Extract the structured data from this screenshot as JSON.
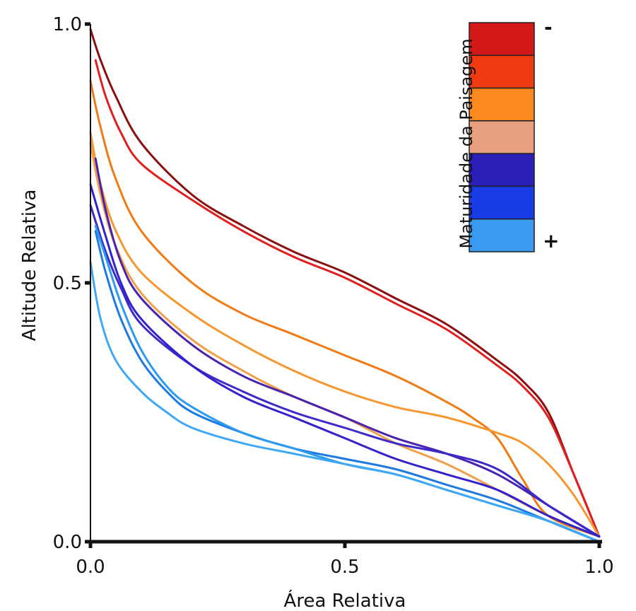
{
  "chart_data": {
    "type": "line",
    "title": "",
    "xlabel": "Área Relativa",
    "ylabel": "Altitude Relativa",
    "xlim": [
      0,
      1
    ],
    "ylim": [
      0,
      1
    ],
    "x_ticks": [
      "0.0",
      "0.5",
      "1.0"
    ],
    "y_ticks": [
      "0.0",
      "0.5",
      "1.0"
    ],
    "grid": false,
    "legend": {
      "type": "colorbar",
      "title": "Maturidade da Paisagem",
      "placement": "top-right",
      "top_label": "-",
      "bottom_label": "+",
      "colors": [
        "#d41818",
        "#ef3a12",
        "#fb8a1e",
        "#e8a080",
        "#2a1fb8",
        "#1a3ce8",
        "#3a9af0"
      ]
    },
    "series": [
      {
        "color": "#8b1010",
        "x": [
          0,
          0.02,
          0.05,
          0.1,
          0.2,
          0.3,
          0.4,
          0.5,
          0.6,
          0.7,
          0.8,
          0.85,
          0.9,
          0.95,
          1.0
        ],
        "y": [
          0.99,
          0.93,
          0.86,
          0.77,
          0.67,
          0.61,
          0.56,
          0.52,
          0.47,
          0.42,
          0.35,
          0.31,
          0.25,
          0.13,
          0.01
        ]
      },
      {
        "color": "#e01f1f",
        "x": [
          0.01,
          0.03,
          0.06,
          0.1,
          0.2,
          0.3,
          0.4,
          0.5,
          0.6,
          0.7,
          0.8,
          0.85,
          0.9,
          0.95,
          1.0
        ],
        "y": [
          0.93,
          0.86,
          0.79,
          0.73,
          0.66,
          0.6,
          0.55,
          0.51,
          0.46,
          0.41,
          0.34,
          0.3,
          0.24,
          0.13,
          0.01
        ]
      },
      {
        "color": "#f07a14",
        "x": [
          0,
          0.02,
          0.05,
          0.1,
          0.2,
          0.3,
          0.4,
          0.5,
          0.6,
          0.7,
          0.75,
          0.8,
          0.85,
          0.9,
          1.0
        ],
        "y": [
          0.89,
          0.8,
          0.7,
          0.6,
          0.5,
          0.44,
          0.4,
          0.36,
          0.32,
          0.27,
          0.24,
          0.2,
          0.12,
          0.05,
          0.01
        ]
      },
      {
        "color": "#f5972e",
        "x": [
          0,
          0.02,
          0.05,
          0.1,
          0.2,
          0.3,
          0.4,
          0.5,
          0.6,
          0.7,
          0.8,
          0.85,
          0.9,
          0.95,
          1.0
        ],
        "y": [
          0.79,
          0.69,
          0.6,
          0.52,
          0.44,
          0.38,
          0.33,
          0.29,
          0.26,
          0.24,
          0.21,
          0.19,
          0.15,
          0.09,
          0.01
        ]
      },
      {
        "color": "#f0a04a",
        "x": [
          0,
          0.02,
          0.05,
          0.1,
          0.2,
          0.3,
          0.4,
          0.5,
          0.6,
          0.7,
          0.8,
          0.9,
          1.0
        ],
        "y": [
          0.77,
          0.67,
          0.57,
          0.48,
          0.39,
          0.33,
          0.28,
          0.24,
          0.19,
          0.15,
          0.1,
          0.05,
          0.01
        ]
      },
      {
        "color": "#4a22b0",
        "x": [
          0.01,
          0.03,
          0.06,
          0.1,
          0.2,
          0.3,
          0.4,
          0.5,
          0.6,
          0.7,
          0.8,
          0.9,
          1.0
        ],
        "y": [
          0.74,
          0.64,
          0.54,
          0.47,
          0.38,
          0.32,
          0.28,
          0.24,
          0.2,
          0.17,
          0.13,
          0.07,
          0.01
        ]
      },
      {
        "color": "#3b2ac8",
        "x": [
          0,
          0.03,
          0.06,
          0.1,
          0.2,
          0.3,
          0.4,
          0.5,
          0.6,
          0.7,
          0.8,
          0.9,
          1.0
        ],
        "y": [
          0.65,
          0.56,
          0.49,
          0.42,
          0.34,
          0.29,
          0.25,
          0.22,
          0.19,
          0.17,
          0.14,
          0.07,
          0.01
        ]
      },
      {
        "color": "#3322cc",
        "x": [
          0,
          0.03,
          0.06,
          0.1,
          0.2,
          0.3,
          0.4,
          0.5,
          0.6,
          0.7,
          0.8,
          0.9,
          1.0
        ],
        "y": [
          0.69,
          0.59,
          0.5,
          0.43,
          0.34,
          0.28,
          0.24,
          0.2,
          0.16,
          0.13,
          0.1,
          0.05,
          0.01
        ]
      },
      {
        "color": "#1e7ae0",
        "x": [
          0.01,
          0.03,
          0.06,
          0.1,
          0.15,
          0.2,
          0.3,
          0.4,
          0.5,
          0.6,
          0.7,
          0.8,
          0.9,
          1.0
        ],
        "y": [
          0.6,
          0.52,
          0.43,
          0.35,
          0.29,
          0.25,
          0.21,
          0.18,
          0.16,
          0.14,
          0.11,
          0.08,
          0.04,
          0.0
        ]
      },
      {
        "color": "#2b9bf0",
        "x": [
          0.01,
          0.03,
          0.06,
          0.1,
          0.15,
          0.2,
          0.3,
          0.4,
          0.5,
          0.6,
          0.7,
          0.8,
          0.9,
          1.0
        ],
        "y": [
          0.61,
          0.55,
          0.46,
          0.37,
          0.3,
          0.26,
          0.21,
          0.18,
          0.15,
          0.13,
          0.1,
          0.07,
          0.04,
          0.0
        ]
      },
      {
        "color": "#3fa8f5",
        "x": [
          0,
          0.02,
          0.05,
          0.1,
          0.15,
          0.2,
          0.3,
          0.4,
          0.5,
          0.6,
          0.7,
          0.8,
          0.9,
          1.0
        ],
        "y": [
          0.54,
          0.43,
          0.35,
          0.29,
          0.25,
          0.22,
          0.19,
          0.17,
          0.15,
          0.13,
          0.1,
          0.07,
          0.04,
          0.0
        ]
      }
    ]
  }
}
